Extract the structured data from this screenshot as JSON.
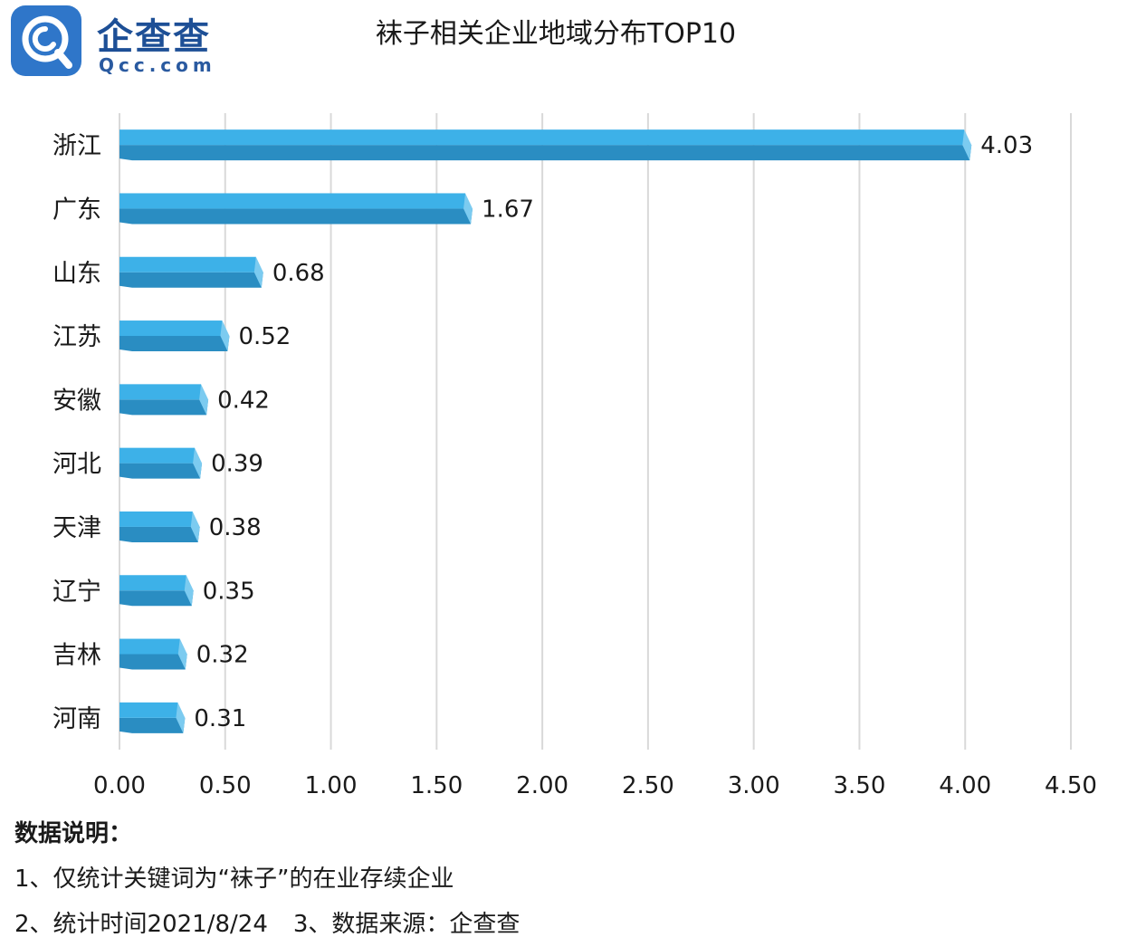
{
  "logo": {
    "cn": "企查查",
    "en": "Qcc.com",
    "icon": "qcc-magnifier-icon",
    "color": "#1d4f96"
  },
  "chart_data": {
    "type": "bar",
    "orientation": "horizontal",
    "title": "袜子相关企业地域分布TOP10",
    "categories": [
      "浙江",
      "广东",
      "山东",
      "江苏",
      "安徽",
      "河北",
      "天津",
      "辽宁",
      "吉林",
      "河南"
    ],
    "values": [
      4.03,
      1.67,
      0.68,
      0.52,
      0.42,
      0.39,
      0.38,
      0.35,
      0.32,
      0.31
    ],
    "value_labels": [
      "4.03",
      "1.67",
      "0.68",
      "0.52",
      "0.42",
      "0.39",
      "0.38",
      "0.35",
      "0.32",
      "0.31"
    ],
    "xticks": [
      "0.00",
      "0.50",
      "1.00",
      "1.50",
      "2.00",
      "2.50",
      "3.00",
      "3.50",
      "4.00",
      "4.50"
    ],
    "xlim": [
      0,
      4.5
    ],
    "grid": true,
    "bar_color": "#3db1e8",
    "bar_shade_color": "#2a8dc2"
  },
  "notes": {
    "heading": "数据说明：",
    "line1": "1、仅统计关键词为“袜子”的在业存续企业",
    "line2_a": "2、统计时间2021/8/24",
    "line2_b": "3、数据来源：企查查"
  }
}
